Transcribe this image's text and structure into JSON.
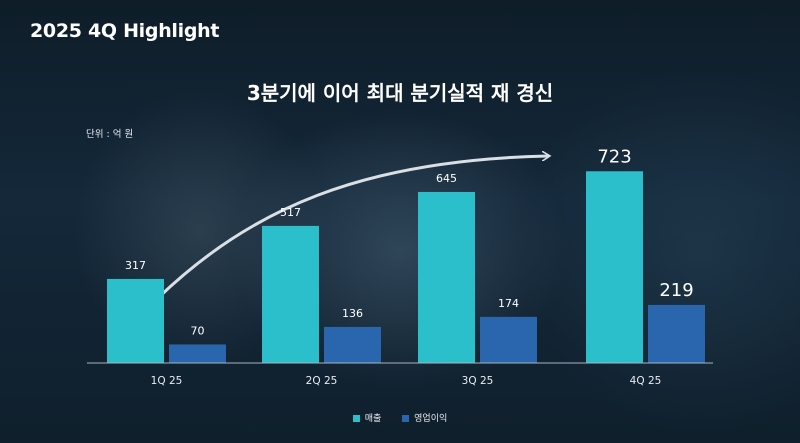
{
  "header": {
    "title": "2025 4Q Highlight"
  },
  "chart_data": {
    "type": "bar",
    "title": "3분기에 이어 최대 분기실적 재 경신",
    "unit_label": "단위 : 억 원",
    "categories": [
      "1Q 25",
      "2Q 25",
      "3Q 25",
      "4Q 25"
    ],
    "series": [
      {
        "name": "매출",
        "values": [
          317,
          517,
          645,
          723
        ],
        "color": "#2bbfcc"
      },
      {
        "name": "영업이익",
        "values": [
          70,
          136,
          174,
          219
        ],
        "color": "#2a66ad"
      }
    ],
    "ylim": [
      0,
      800
    ],
    "grid": false,
    "legend_position": "bottom-center"
  }
}
